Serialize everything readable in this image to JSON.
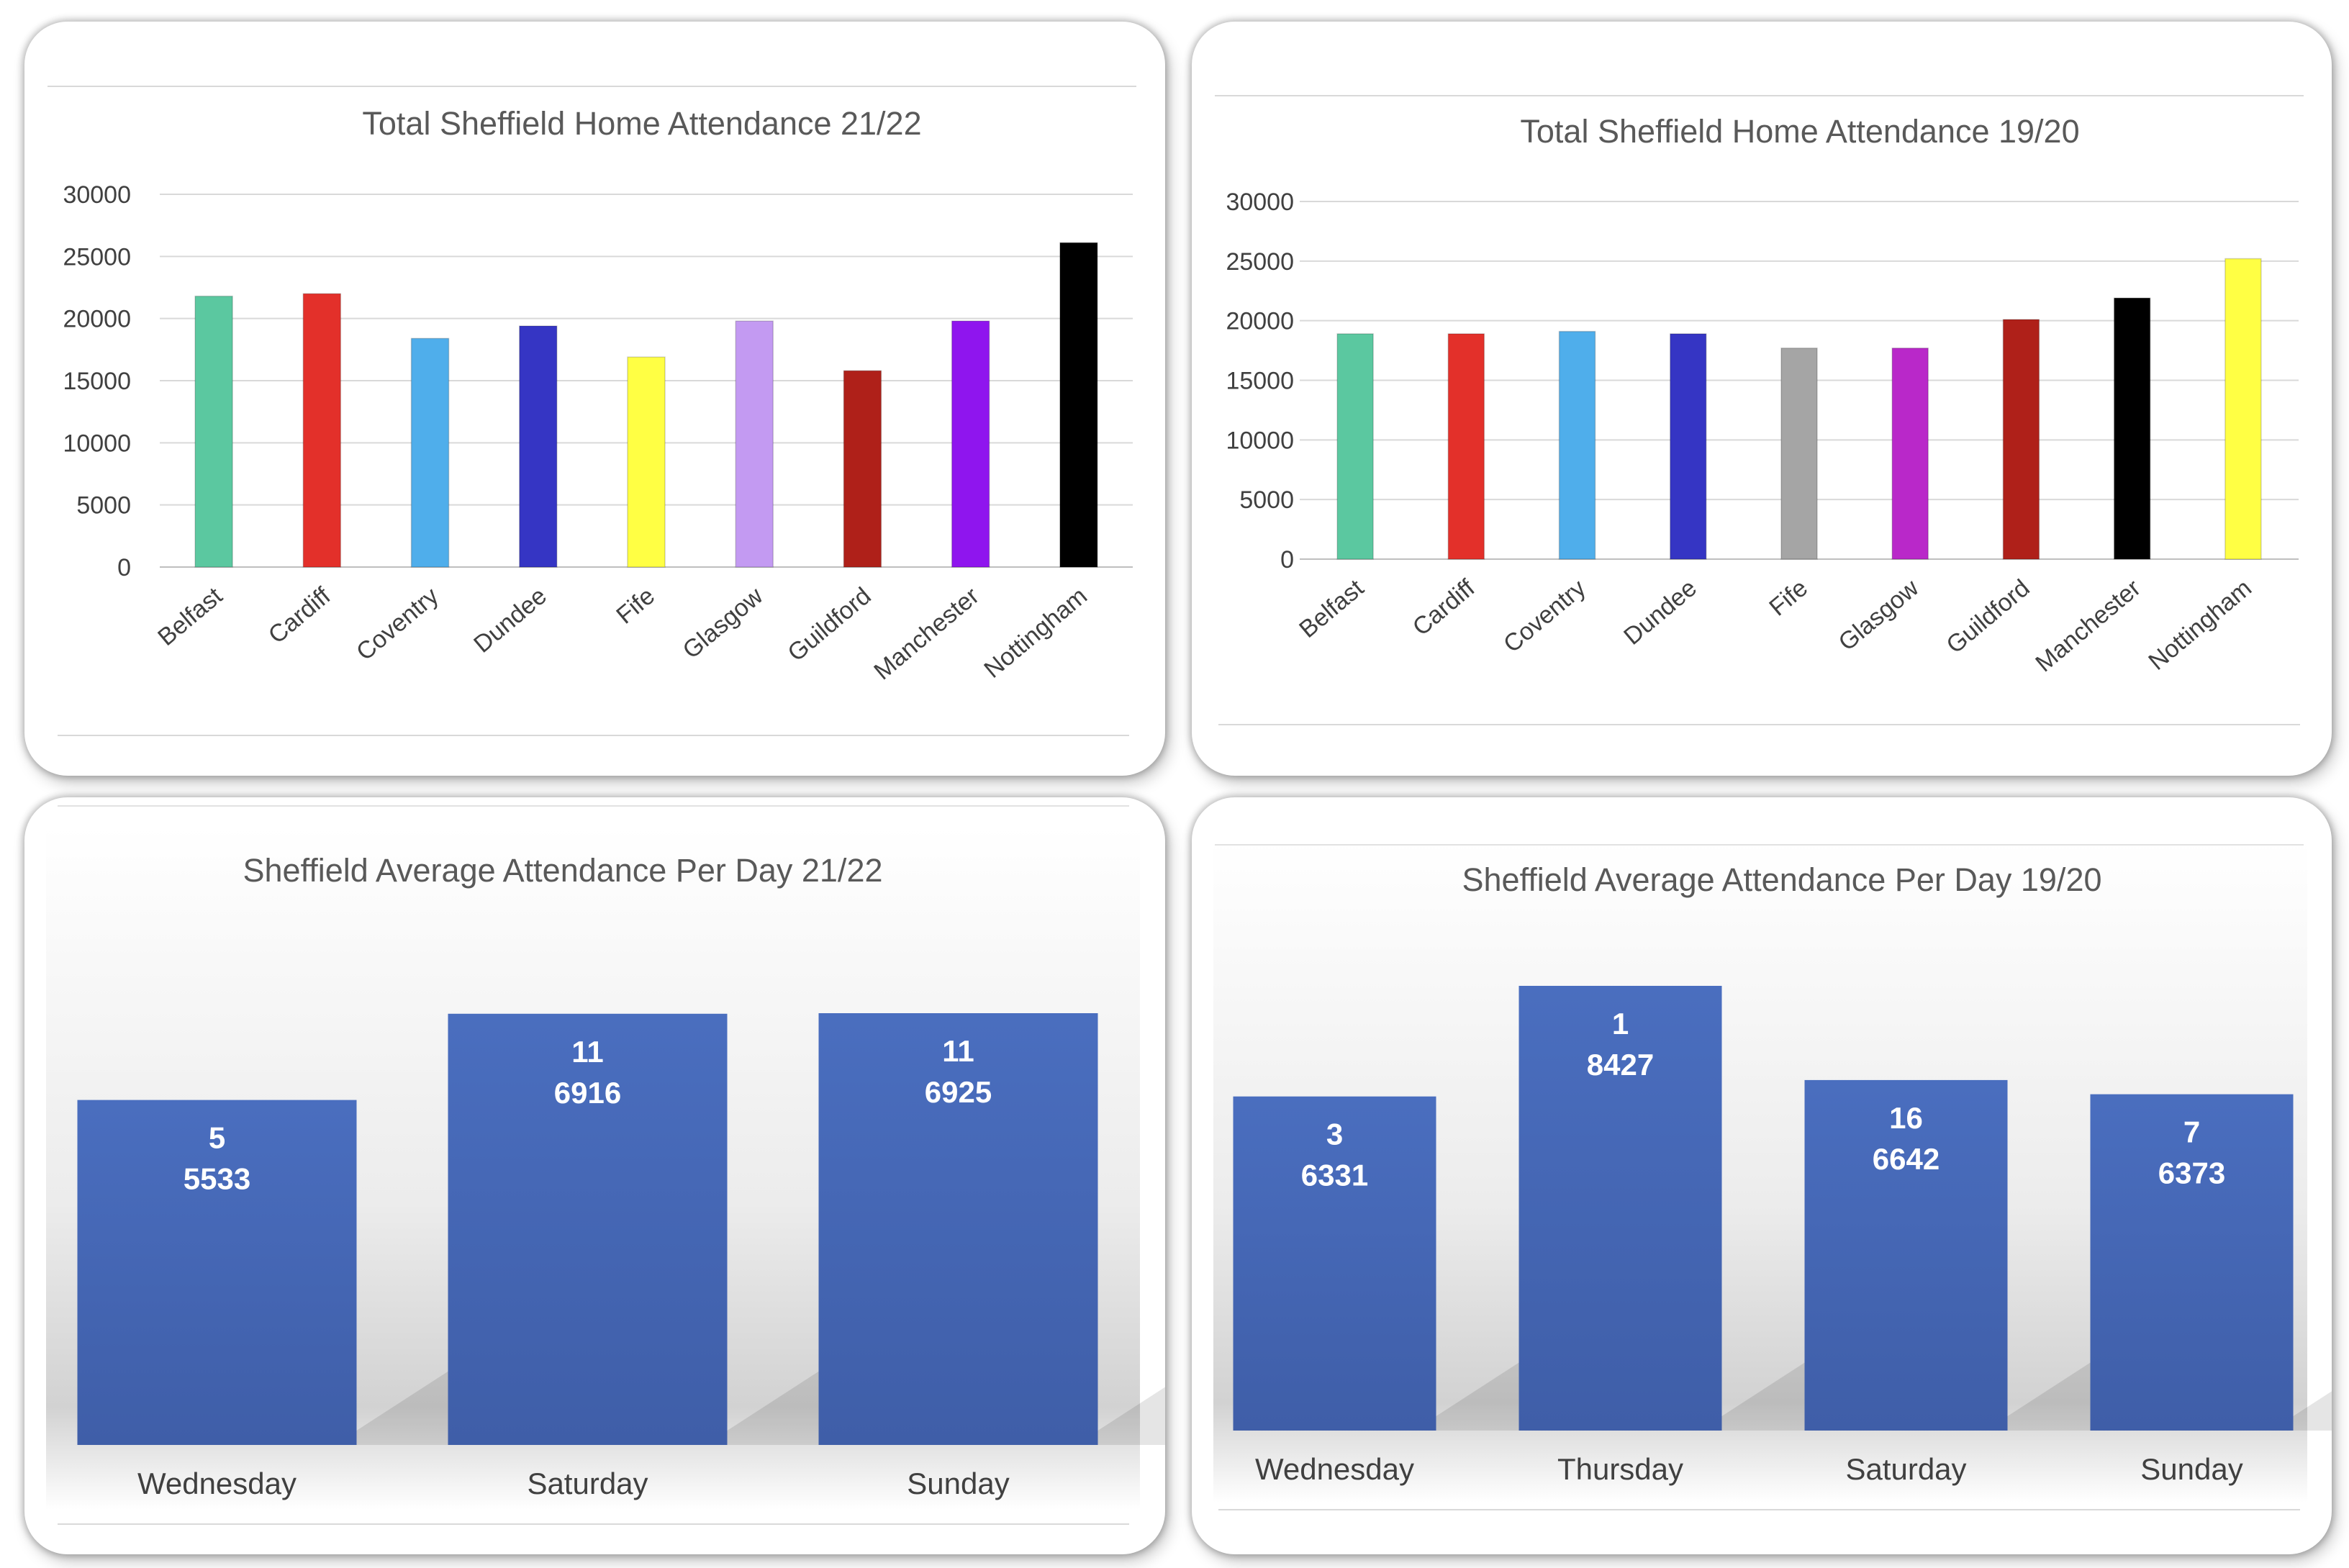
{
  "chart_data": [
    {
      "type": "bar",
      "title": "Total Sheffield Home Attendance 21/22",
      "categories": [
        "Belfast",
        "Cardiff",
        "Coventry",
        "Dundee",
        "Fife",
        "Glasgow",
        "Guildford",
        "Manchester",
        "Nottingham"
      ],
      "values": [
        21800,
        22000,
        18400,
        19400,
        16900,
        19800,
        15800,
        19800,
        26100
      ],
      "colors": [
        "#5BC8A0",
        "#E3302A",
        "#4FAEEB",
        "#3535C4",
        "#FFFF44",
        "#C39AF2",
        "#AF2019",
        "#8F15EE",
        "#000000"
      ],
      "yticks": [
        "0",
        "5000",
        "10000",
        "15000",
        "20000",
        "25000",
        "30000"
      ],
      "ylim": [
        0,
        30000
      ],
      "grid": true
    },
    {
      "type": "bar",
      "title": "Total Sheffield Home Attendance 19/20",
      "categories": [
        "Belfast",
        "Cardiff",
        "Coventry",
        "Dundee",
        "Fife",
        "Glasgow",
        "Guildford",
        "Manchester",
        "Nottingham"
      ],
      "values": [
        18900,
        18900,
        19100,
        18900,
        17700,
        17700,
        20100,
        21900,
        25200
      ],
      "colors": [
        "#5BC8A0",
        "#E3302A",
        "#4FAEEB",
        "#3535C4",
        "#A5A5A5",
        "#B928C9",
        "#AF2019",
        "#000000",
        "#FFFF44"
      ],
      "yticks": [
        "0",
        "5000",
        "10000",
        "15000",
        "20000",
        "25000",
        "30000"
      ],
      "ylim": [
        0,
        30000
      ],
      "grid": true
    },
    {
      "type": "bar",
      "title": "Sheffield Average Attendance Per Day 21/22",
      "categories": [
        "Wednesday",
        "Saturday",
        "Sunday"
      ],
      "values": [
        5533,
        6916,
        6925
      ],
      "data_labels": [
        [
          "5",
          "5533"
        ],
        [
          "11",
          "6916"
        ],
        [
          "11",
          "6925"
        ]
      ],
      "color": "#4467B7",
      "grid": false
    },
    {
      "type": "bar",
      "title": "Sheffield Average Attendance Per Day 19/20",
      "categories": [
        "Wednesday",
        "Thursday",
        "Saturday",
        "Sunday"
      ],
      "values": [
        6331,
        8427,
        6642,
        6373
      ],
      "data_labels": [
        [
          "3",
          "6331"
        ],
        [
          "1",
          "8427"
        ],
        [
          "16",
          "6642"
        ],
        [
          "7",
          "6373"
        ]
      ],
      "color": "#4467B7",
      "grid": false
    }
  ]
}
